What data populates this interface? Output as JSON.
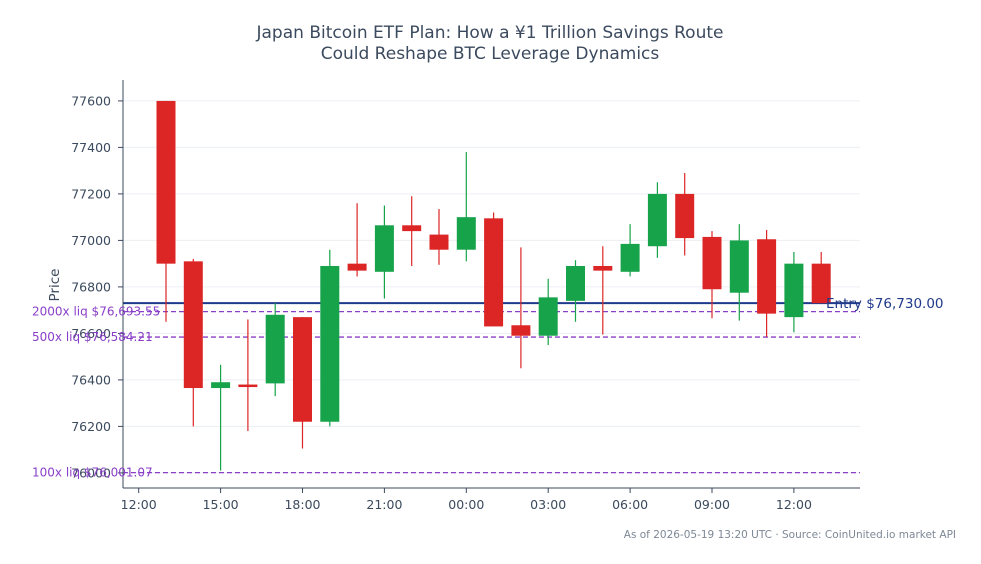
{
  "chart_data": {
    "type": "candlestick",
    "title_line1": "Japan Bitcoin ETF Plan: How a ¥1 Trillion Savings Route",
    "title_line2": "Could Reshape BTC Leverage Dynamics",
    "ylabel": "Price",
    "ylim": [
      75935,
      77690
    ],
    "y_ticks": [
      76000,
      76200,
      76400,
      76600,
      76800,
      77000,
      77200,
      77400,
      77600
    ],
    "x_ticks": [
      "12:00",
      "15:00",
      "18:00",
      "21:00",
      "00:00",
      "03:00",
      "06:00",
      "09:00",
      "12:00"
    ],
    "x_tick_indices": [
      -1,
      2,
      5,
      8,
      11,
      14,
      17,
      20,
      23
    ],
    "grid": "horizontal",
    "colors": {
      "up": "#16a34a",
      "down": "#dc2626",
      "entry": "#1e3a8a",
      "liq": "#8a3fc8",
      "axis": "#3b4a5e",
      "grid": "#eceff3"
    },
    "candles": [
      {
        "time": "13:00",
        "open": 77600,
        "high": 77600,
        "low": 76650,
        "close": 76900
      },
      {
        "time": "14:00",
        "open": 76910,
        "high": 76920,
        "low": 76200,
        "close": 76365
      },
      {
        "time": "15:00",
        "open": 76365,
        "high": 76465,
        "low": 76010,
        "close": 76390
      },
      {
        "time": "16:00",
        "open": 76380,
        "high": 76660,
        "low": 76180,
        "close": 76375
      },
      {
        "time": "17:00",
        "open": 76385,
        "high": 76730,
        "low": 76330,
        "close": 76680
      },
      {
        "time": "18:00",
        "open": 76670,
        "high": 76670,
        "low": 76105,
        "close": 76220
      },
      {
        "time": "19:00",
        "open": 76220,
        "high": 76960,
        "low": 76200,
        "close": 76890
      },
      {
        "time": "20:00",
        "open": 76900,
        "high": 77160,
        "low": 76845,
        "close": 76870
      },
      {
        "time": "21:00",
        "open": 76865,
        "high": 77150,
        "low": 76750,
        "close": 77065
      },
      {
        "time": "22:00",
        "open": 77065,
        "high": 77190,
        "low": 76890,
        "close": 77040
      },
      {
        "time": "23:00",
        "open": 77025,
        "high": 77135,
        "low": 76895,
        "close": 76960
      },
      {
        "time": "00:00",
        "open": 76960,
        "high": 77380,
        "low": 76910,
        "close": 77100
      },
      {
        "time": "01:00",
        "open": 77095,
        "high": 77120,
        "low": 76630,
        "close": 76630
      },
      {
        "time": "02:00",
        "open": 76635,
        "high": 76970,
        "low": 76450,
        "close": 76590
      },
      {
        "time": "03:00",
        "open": 76590,
        "high": 76835,
        "low": 76550,
        "close": 76755
      },
      {
        "time": "04:00",
        "open": 76740,
        "high": 76915,
        "low": 76650,
        "close": 76890
      },
      {
        "time": "05:00",
        "open": 76890,
        "high": 76975,
        "low": 76595,
        "close": 76870
      },
      {
        "time": "06:00",
        "open": 76865,
        "high": 77070,
        "low": 76845,
        "close": 76985
      },
      {
        "time": "07:00",
        "open": 76975,
        "high": 77250,
        "low": 76925,
        "close": 77200
      },
      {
        "time": "08:00",
        "open": 77200,
        "high": 77290,
        "low": 76935,
        "close": 77010
      },
      {
        "time": "09:00",
        "open": 77015,
        "high": 77040,
        "low": 76665,
        "close": 76790
      },
      {
        "time": "10:00",
        "open": 76775,
        "high": 77070,
        "low": 76655,
        "close": 77000
      },
      {
        "time": "11:00",
        "open": 77005,
        "high": 77045,
        "low": 76585,
        "close": 76685
      },
      {
        "time": "12:00",
        "open": 76670,
        "high": 76950,
        "low": 76605,
        "close": 76900
      },
      {
        "time": "13:00",
        "open": 76900,
        "high": 76950,
        "low": 76730,
        "close": 76730
      }
    ],
    "entry": {
      "value": 76730.0,
      "label": "Entry $76,730.00"
    },
    "liq_lines": [
      {
        "value": 76693.55,
        "label": "2000x liq $76,693.55"
      },
      {
        "value": 76584.21,
        "label": "500x liq $76,584.21"
      },
      {
        "value": 76001.07,
        "label": "100x liq $76,001.07"
      }
    ],
    "footer": "As of 2026-05-19 13:20 UTC · Source: CoinUnited.io market API"
  }
}
